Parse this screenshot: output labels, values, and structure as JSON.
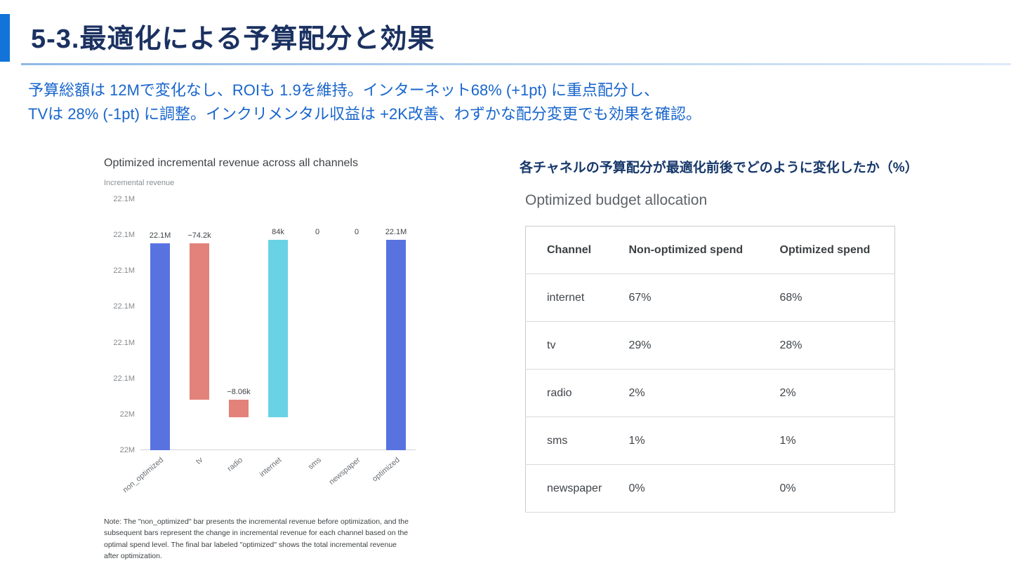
{
  "slide": {
    "title": "5-3.最適化による予算配分と効果",
    "body_lines": [
      "予算総額は 12Mで変化なし、ROIも 1.9を維持。インターネット68% (+1pt) に重点配分し、",
      "TVは 28% (-1pt) に調整。インクリメンタル収益は +2K改善、わずかな配分変更でも効果を確認。"
    ]
  },
  "chart_data": {
    "type": "bar",
    "subtype": "waterfall",
    "title": "Optimized incremental revenue across all channels",
    "ylabel": "Incremental revenue",
    "grid": false,
    "legend": false,
    "ylim": [
      22005000,
      22124000
    ],
    "y_ticks": [
      "22.1M",
      "22.1M",
      "22.1M",
      "22.1M",
      "22.1M",
      "22.1M",
      "22M",
      "22M"
    ],
    "categories": [
      "non_optimized",
      "tv",
      "radio",
      "internet",
      "sms",
      "newspaper",
      "optimized"
    ],
    "bars": [
      {
        "category": "non_optimized",
        "label": "22.1M",
        "value": 22103000,
        "from": 22005000,
        "to": 22103000,
        "color": "blue"
      },
      {
        "category": "tv",
        "label": "−74.2k",
        "value": -74200,
        "from": 22103000,
        "to": 22028800,
        "color": "red"
      },
      {
        "category": "radio",
        "label": "−8.06k",
        "value": -8060,
        "from": 22028800,
        "to": 22020740,
        "color": "red"
      },
      {
        "category": "internet",
        "label": "84k",
        "value": 84000,
        "from": 22020740,
        "to": 22104740,
        "color": "cyan"
      },
      {
        "category": "sms",
        "label": "0",
        "value": 0,
        "from": 22104740,
        "to": 22104740,
        "color": "none"
      },
      {
        "category": "newspaper",
        "label": "0",
        "value": 0,
        "from": 22104740,
        "to": 22104740,
        "color": "none"
      },
      {
        "category": "optimized",
        "label": "22.1M",
        "value": 22104740,
        "from": 22005000,
        "to": 22104740,
        "color": "blue"
      }
    ],
    "note": "Note: The \"non_optimized\" bar presents the incremental revenue before optimization, and the subsequent bars represent the change in incremental revenue for each channel based on the optimal spend level. The final bar labeled \"optimized\" shows the total incremental revenue after optimization."
  },
  "right_panel": {
    "caption": "各チャネルの予算配分が最適化前後でどのように変化したか（%）",
    "table": {
      "title": "Optimized budget allocation",
      "columns": [
        "Channel",
        "Non-optimized spend",
        "Optimized spend"
      ],
      "rows": [
        [
          "internet",
          "67%",
          "68%"
        ],
        [
          "tv",
          "29%",
          "28%"
        ],
        [
          "radio",
          "2%",
          "2%"
        ],
        [
          "sms",
          "1%",
          "1%"
        ],
        [
          "newspaper",
          "0%",
          "0%"
        ]
      ]
    }
  },
  "colors": {
    "accent_blue": "#1273d8",
    "title_navy": "#1b3161",
    "body_blue": "#1966cc",
    "bar_blue": "#5873e0",
    "bar_red": "#e2827a",
    "bar_cyan": "#6ad2e5"
  }
}
